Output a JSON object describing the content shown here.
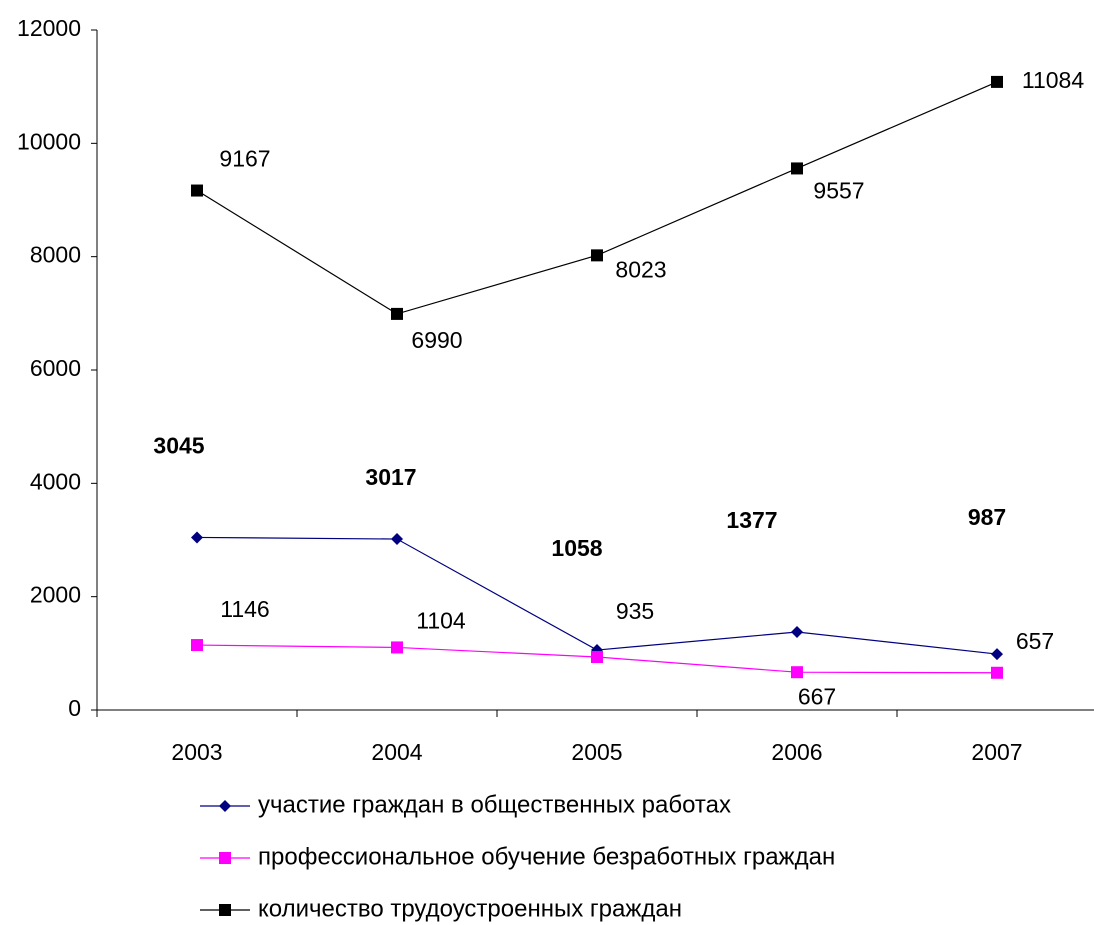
{
  "chart_data": {
    "type": "line",
    "categories": [
      "2003",
      "2004",
      "2005",
      "2006",
      "2007"
    ],
    "series": [
      {
        "name": "участие граждан в общественных работах",
        "color": "#000080",
        "marker": "diamond",
        "values": [
          3045,
          3017,
          1058,
          1377,
          987
        ]
      },
      {
        "name": "профессиональное обучение безработных граждан",
        "color": "#ff00ff",
        "marker": "square",
        "values": [
          1146,
          1104,
          935,
          667,
          657
        ]
      },
      {
        "name": "количество трудоустроенных граждан",
        "color": "#000000",
        "marker": "square",
        "values": [
          9167,
          6990,
          8023,
          9557,
          11084
        ]
      }
    ],
    "ylim": [
      0,
      12000
    ],
    "yticks": [
      0,
      2000,
      4000,
      6000,
      8000,
      10000,
      12000
    ],
    "grid": false,
    "legend": "bottom"
  }
}
